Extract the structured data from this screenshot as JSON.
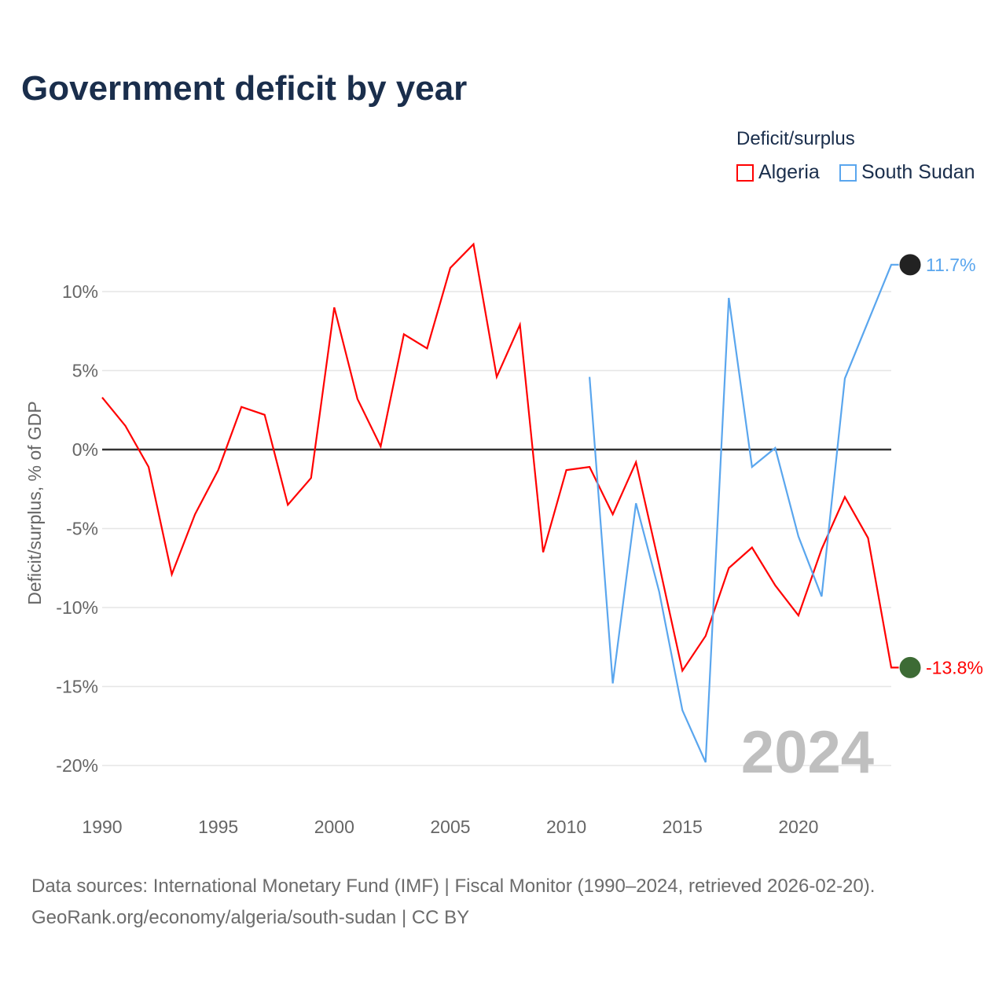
{
  "title": "Government deficit by year",
  "legend": {
    "title": "Deficit/surplus",
    "items": [
      {
        "label": "Algeria",
        "color": "#ff0000"
      },
      {
        "label": "South Sudan",
        "color": "#5aa6ee"
      }
    ]
  },
  "source_line1": "Data sources: International Monetary Fund (IMF) | Fiscal Monitor (1990–2024, retrieved 2026-02-20).",
  "source_line2": "GeoRank.org/economy/algeria/south-sudan | CC BY",
  "chart_data": {
    "type": "line",
    "title": "Government deficit by year",
    "xlabel": "",
    "ylabel": "Deficit/surplus, % of GDP",
    "xlim": [
      1990,
      2024
    ],
    "ylim": [
      -20,
      13
    ],
    "xticks": [
      1990,
      1995,
      2000,
      2005,
      2010,
      2015,
      2020
    ],
    "yticks": [
      {
        "v": 10,
        "label": "10%"
      },
      {
        "v": 5,
        "label": "5%"
      },
      {
        "v": 0,
        "label": "0%"
      },
      {
        "v": -5,
        "label": "-5%"
      },
      {
        "v": -10,
        "label": "-10%"
      },
      {
        "v": -15,
        "label": "-15%"
      },
      {
        "v": -20,
        "label": "-20%"
      }
    ],
    "year_watermark": "2024",
    "series": [
      {
        "name": "Algeria",
        "color": "#ff0000",
        "end_label": "-13.8%",
        "start": 1990,
        "values": [
          3.3,
          1.5,
          -1.1,
          -7.9,
          -4.1,
          -1.3,
          2.7,
          2.2,
          -3.5,
          -1.8,
          9.0,
          3.2,
          0.2,
          7.3,
          6.4,
          11.5,
          13.0,
          4.6,
          7.9,
          -6.5,
          -1.3,
          -1.1,
          -4.1,
          -0.8,
          -7.3,
          -14.0,
          -11.8,
          -7.5,
          -6.2,
          -8.6,
          -10.5,
          -6.3,
          -3.0,
          -5.6,
          -13.8
        ]
      },
      {
        "name": "South Sudan",
        "color": "#5aa6ee",
        "end_label": "11.7%",
        "start": 2011,
        "values": [
          4.6,
          -14.8,
          -3.4,
          -9.0,
          -16.5,
          -19.8,
          9.6,
          -1.1,
          0.1,
          -5.5,
          -9.3,
          4.5,
          8.1,
          11.7
        ]
      }
    ]
  }
}
